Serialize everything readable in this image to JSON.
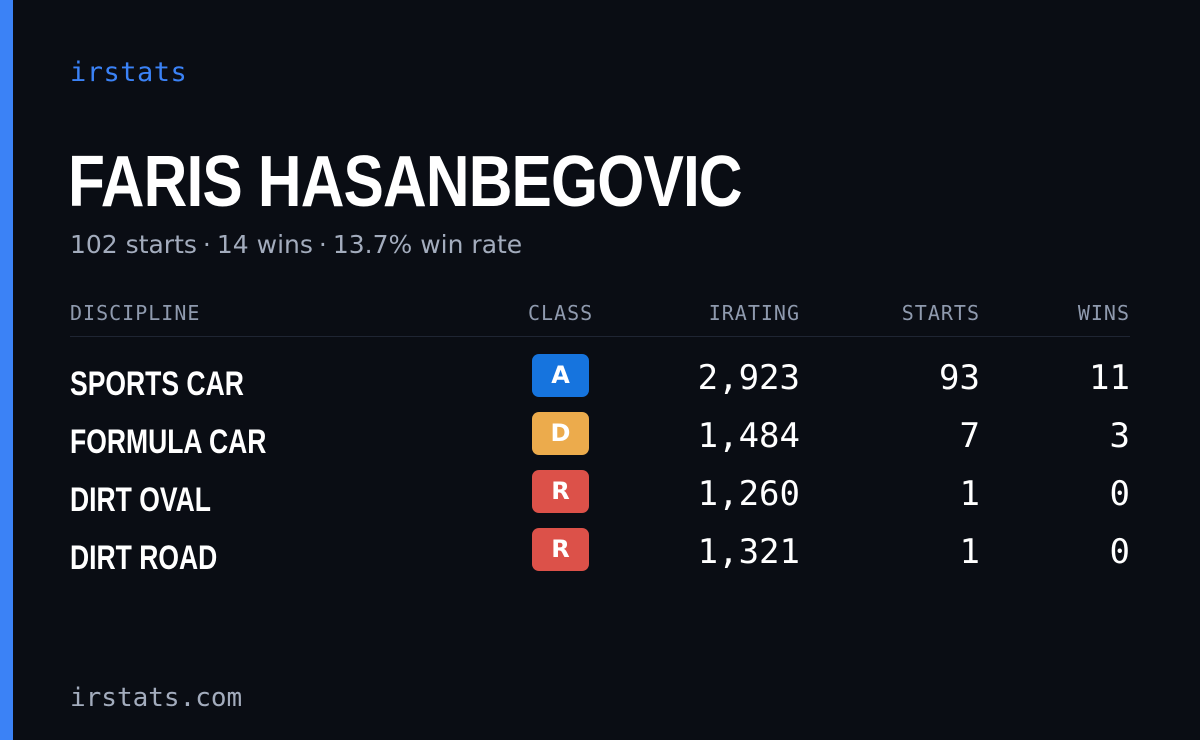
{
  "brand": "irstats",
  "driver": {
    "name": "FARIS HASANBEGOVIC"
  },
  "summary": {
    "starts": "102 starts",
    "wins": "14 wins",
    "win_rate": "13.7% win rate",
    "separator": "·"
  },
  "table": {
    "headers": {
      "discipline": "DISCIPLINE",
      "class": "CLASS",
      "irating": "IRATING",
      "starts": "STARTS",
      "wins": "WINS"
    },
    "rows": [
      {
        "discipline": "SPORTS CAR",
        "class": "A",
        "class_color": "#1674de",
        "irating": "2,923",
        "starts": "93",
        "wins": "11"
      },
      {
        "discipline": "FORMULA CAR",
        "class": "D",
        "class_color": "#ecab4c",
        "irating": "1,484",
        "starts": "7",
        "wins": "3"
      },
      {
        "discipline": "DIRT OVAL",
        "class": "R",
        "class_color": "#dc5149",
        "irating": "1,260",
        "starts": "1",
        "wins": "0"
      },
      {
        "discipline": "DIRT ROAD",
        "class": "R",
        "class_color": "#dc5149",
        "irating": "1,321",
        "starts": "1",
        "wins": "0"
      }
    ]
  },
  "footer": {
    "url": "irstats.com"
  },
  "colors": {
    "accent": "#3b82f6",
    "background": "#0a0d14"
  }
}
